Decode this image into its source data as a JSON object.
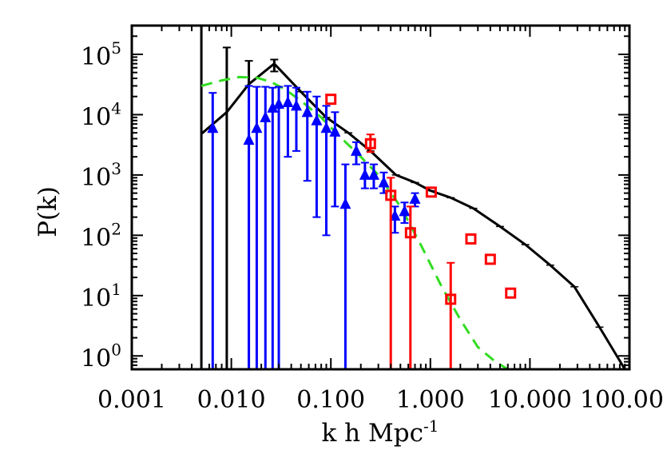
{
  "chart_data": {
    "type": "line",
    "xscale": "log",
    "yscale": "log",
    "xlim": [
      0.001,
      100
    ],
    "ylim": [
      0.6,
      300000
    ],
    "xlabel_base": "k h Mpc",
    "xlabel_exp": "-1",
    "ylabel": "P(k)",
    "x_tick_labels": [
      "0.001",
      "0.010",
      "0.100",
      "1.000",
      "10.000",
      "100.000"
    ],
    "x_tick_values": [
      0.001,
      0.01,
      0.1,
      1,
      10,
      100
    ],
    "y_tick_values": [
      1,
      10,
      100,
      1000,
      10000,
      100000
    ],
    "y_tick_labels": [
      {
        "base": "10",
        "exp": "0"
      },
      {
        "base": "10",
        "exp": "1"
      },
      {
        "base": "10",
        "exp": "2"
      },
      {
        "base": "10",
        "exp": "3"
      },
      {
        "base": "10",
        "exp": "4"
      },
      {
        "base": "10",
        "exp": "5"
      }
    ],
    "colors": {
      "model": "#000000",
      "dashed": "#33dd22",
      "triangles": "#0000ff",
      "squares": "#ff0000"
    },
    "series": [
      {
        "id": "model-line",
        "style": "solid",
        "color": "#000000",
        "x": [
          0.005,
          0.009,
          0.015,
          0.027,
          0.05,
          0.09,
          0.15,
          0.25,
          0.45,
          0.7,
          1.0,
          1.6,
          2.7,
          5,
          9,
          16,
          28,
          50,
          90
        ],
        "y": [
          4800,
          11000,
          32000,
          70000,
          24000,
          9000,
          5000,
          2500,
          1000,
          750,
          550,
          420,
          280,
          140,
          70,
          32,
          14,
          3,
          0.6
        ],
        "err_low": [
          0.6,
          0.6,
          0.6,
          52000,
          null,
          null,
          null,
          null,
          null,
          null,
          null,
          null,
          null,
          null,
          null,
          null,
          null,
          null,
          null
        ],
        "err_high": [
          300000,
          130000,
          78000,
          82000,
          null,
          null,
          null,
          null,
          null,
          null,
          null,
          null,
          null,
          null,
          null,
          null,
          null,
          null,
          null
        ]
      },
      {
        "id": "dashed-fit",
        "style": "dashed",
        "color": "#33dd22",
        "x": [
          0.005,
          0.008,
          0.012,
          0.018,
          0.025,
          0.035,
          0.05,
          0.08,
          0.12,
          0.2,
          0.3,
          0.5,
          0.8,
          1.3,
          2,
          3,
          4.5,
          6
        ],
        "y": [
          30000,
          37000,
          42000,
          41000,
          35000,
          26000,
          17000,
          9000,
          4500,
          2000,
          1000,
          300,
          70,
          14,
          4,
          1.4,
          0.8,
          0.6
        ]
      },
      {
        "id": "blue-triangles",
        "style": "triangle",
        "color": "#0000ff",
        "x": [
          0.0065,
          0.015,
          0.018,
          0.022,
          0.026,
          0.03,
          0.037,
          0.045,
          0.058,
          0.072,
          0.09,
          0.11,
          0.14,
          0.18,
          0.22,
          0.27,
          0.34,
          0.44,
          0.55,
          0.7
        ],
        "y": [
          6000,
          3800,
          6000,
          9000,
          13000,
          15000,
          16000,
          14000,
          11000,
          8000,
          6000,
          5200,
          330,
          2500,
          1000,
          1000,
          750,
          210,
          250,
          400
        ],
        "err_low": [
          0.6,
          0.6,
          0.6,
          0.6,
          0.6,
          0.6,
          2000,
          2500,
          800,
          200,
          100,
          300,
          0.6,
          1500,
          600,
          600,
          500,
          110,
          160,
          300
        ],
        "err_high": [
          23000,
          30000,
          29000,
          29000,
          28000,
          29000,
          30000,
          28000,
          24000,
          20000,
          14000,
          11000,
          1500,
          3500,
          1600,
          1500,
          1100,
          300,
          350,
          500
        ]
      },
      {
        "id": "red-squares",
        "style": "square",
        "color": "#ff0000",
        "x": [
          0.1,
          0.25,
          0.4,
          0.63,
          1.02,
          1.6,
          2.55,
          4.0,
          6.4
        ],
        "y": [
          18000,
          3300,
          460,
          110,
          520,
          8.7,
          87,
          40,
          11
        ],
        "err_low": [
          null,
          2400,
          0.6,
          0.6,
          null,
          0.6,
          null,
          null,
          null
        ],
        "err_high": [
          null,
          4700,
          900,
          300,
          null,
          35,
          null,
          null,
          null
        ]
      }
    ]
  }
}
